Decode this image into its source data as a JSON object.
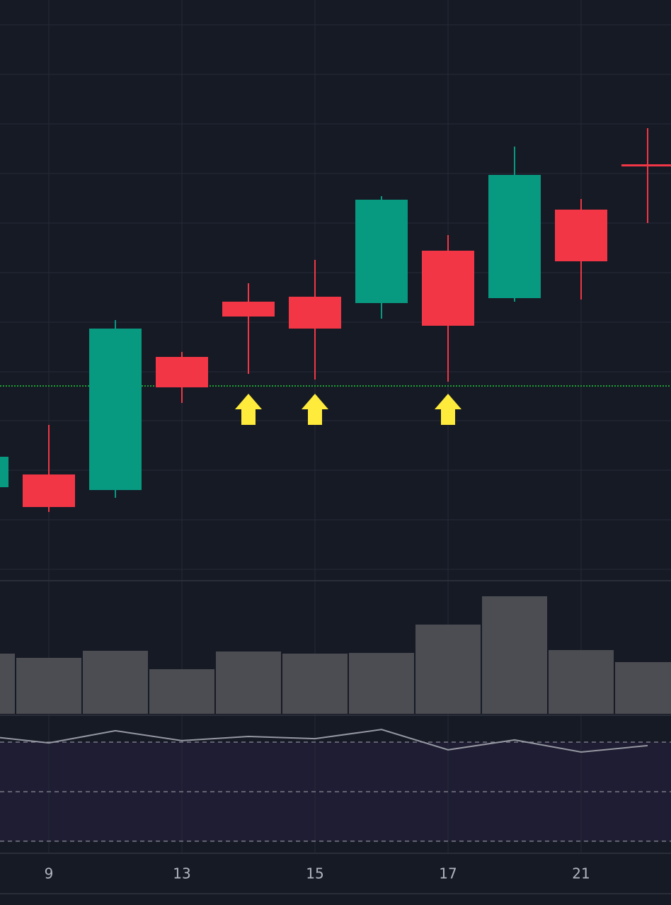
{
  "chart_data": {
    "type": "candlestick",
    "categories": [
      null,
      "9",
      null,
      "13",
      null,
      "15",
      null,
      "17",
      null,
      "21",
      null
    ],
    "open": [
      132,
      150,
      128,
      316,
      394,
      401,
      392,
      466,
      399,
      524,
      588
    ],
    "high": [
      180,
      220,
      368,
      323,
      420,
      453,
      543,
      488,
      613,
      539,
      639
    ],
    "low": [
      128,
      97,
      117,
      251,
      292,
      284,
      370,
      281,
      394,
      397,
      505
    ],
    "close": [
      175,
      104,
      356,
      273,
      373,
      356,
      538,
      360,
      573,
      451,
      586
    ],
    "up_color": "#089981",
    "down_color": "#f23645",
    "ylim": [
      0,
      820
    ],
    "yticks": [
      16,
      86,
      156,
      226,
      295,
      365,
      435,
      505,
      575,
      645,
      715,
      785
    ],
    "grid": true,
    "level": 275,
    "level_color": "#1e9e32",
    "signals": [
      4,
      5,
      7
    ],
    "signal_color": "#ffeb3b",
    "volume": [
      85,
      79,
      89,
      63,
      88,
      85,
      86,
      126,
      166,
      90,
      73
    ],
    "volume_color": "#4c4d52",
    "volume_ylim": [
      0,
      188
    ],
    "rsi": [
      72.6,
      69.7,
      74.6,
      70.6,
      72.3,
      71.4,
      75.1,
      66.9,
      70.9,
      66.0,
      68.6
    ],
    "rsi_color": "#9598a1",
    "rsi_ylim": [
      25.1,
      80.3
    ],
    "rsi_levels": [
      70,
      50,
      30
    ]
  }
}
